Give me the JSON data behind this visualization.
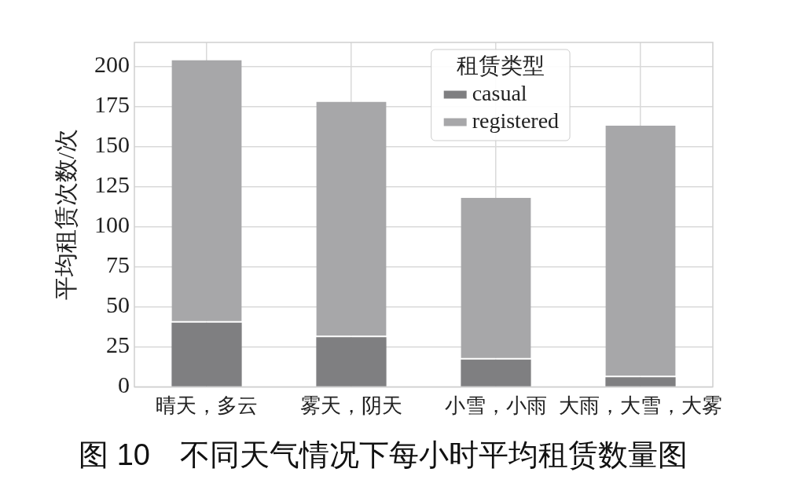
{
  "chart_data": {
    "type": "bar",
    "title": "图 10　不同天气情况下每小时平均租赁数量图",
    "ylabel": "平均租赁次数/次",
    "legend_title": "租赁类型",
    "categories": [
      "晴天，多云",
      "雾天，阴天",
      "小雪，小雨",
      "大雨，大雪，大雾"
    ],
    "series": [
      {
        "name": "casual",
        "color": "#7f7f81",
        "values": [
          40,
          31,
          17,
          6
        ]
      },
      {
        "name": "registered",
        "color": "#a7a7a9",
        "values": [
          164,
          147,
          101,
          157
        ]
      }
    ],
    "stacked": true,
    "ylim": [
      0,
      215
    ],
    "yticks": [
      0,
      25,
      50,
      75,
      100,
      125,
      150,
      175,
      200
    ],
    "grid": true,
    "legend": "top"
  }
}
